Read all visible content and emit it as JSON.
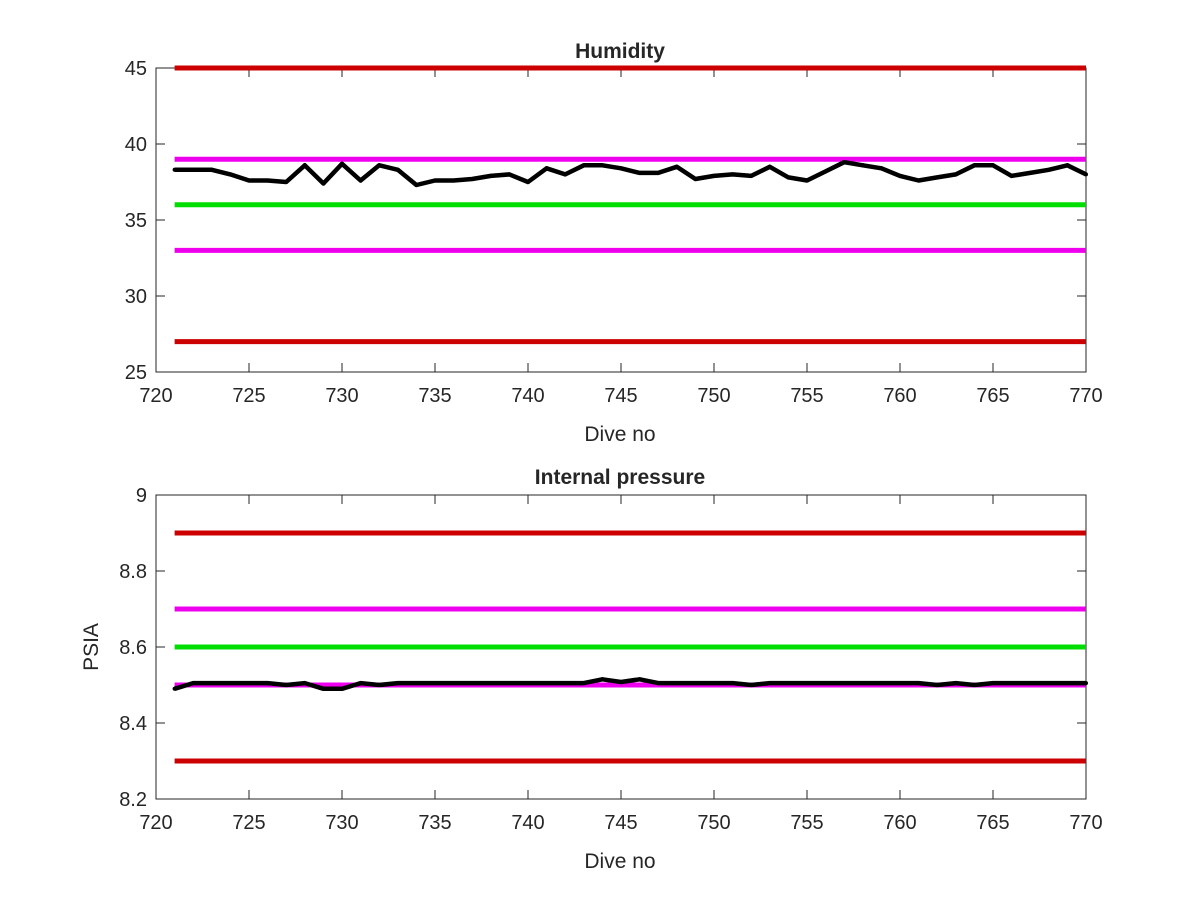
{
  "chart_data": [
    {
      "type": "line",
      "title": "Humidity",
      "xlabel": "Dive no",
      "ylabel": "",
      "xlim": [
        720,
        770
      ],
      "ylim": [
        25,
        45
      ],
      "xticks": [
        720,
        725,
        730,
        735,
        740,
        745,
        750,
        755,
        760,
        765,
        770
      ],
      "yticks": [
        25,
        30,
        35,
        40,
        45
      ],
      "grid": false,
      "reference_lines": [
        {
          "y": 45,
          "color": "#cc0000"
        },
        {
          "y": 39,
          "color": "#ee00ee"
        },
        {
          "y": 36,
          "color": "#00dd00"
        },
        {
          "y": 33,
          "color": "#ee00ee"
        },
        {
          "y": 27,
          "color": "#cc0000"
        }
      ],
      "series": [
        {
          "color": "#000000",
          "x": [
            721,
            722,
            723,
            724,
            725,
            726,
            727,
            728,
            729,
            730,
            731,
            732,
            733,
            734,
            735,
            736,
            737,
            738,
            739,
            740,
            741,
            742,
            743,
            744,
            745,
            746,
            747,
            748,
            749,
            750,
            751,
            752,
            753,
            754,
            755,
            756,
            757,
            758,
            759,
            760,
            761,
            762,
            763,
            764,
            765,
            766,
            767,
            768,
            769,
            770
          ],
          "y": [
            38.3,
            38.3,
            38.3,
            38.0,
            37.6,
            37.6,
            37.5,
            38.6,
            37.4,
            38.7,
            37.6,
            38.6,
            38.3,
            37.3,
            37.6,
            37.6,
            37.7,
            37.9,
            38.0,
            37.5,
            38.4,
            38.0,
            38.6,
            38.6,
            38.4,
            38.1,
            38.1,
            38.5,
            37.7,
            37.9,
            38.0,
            37.9,
            38.5,
            37.8,
            37.6,
            38.2,
            38.8,
            38.6,
            38.4,
            37.9,
            37.6,
            37.8,
            38.0,
            38.6,
            38.6,
            37.9,
            38.1,
            38.3,
            38.6,
            38.0
          ]
        }
      ]
    },
    {
      "type": "line",
      "title": "Internal pressure",
      "xlabel": "Dive no",
      "ylabel": "PSIA",
      "xlim": [
        720,
        770
      ],
      "ylim": [
        8.2,
        9
      ],
      "xticks": [
        720,
        725,
        730,
        735,
        740,
        745,
        750,
        755,
        760,
        765,
        770
      ],
      "yticks": [
        8.2,
        8.4,
        8.6,
        8.8,
        9
      ],
      "grid": false,
      "reference_lines": [
        {
          "y": 8.9,
          "color": "#cc0000"
        },
        {
          "y": 8.7,
          "color": "#ee00ee"
        },
        {
          "y": 8.6,
          "color": "#00dd00"
        },
        {
          "y": 8.5,
          "color": "#ee00ee"
        },
        {
          "y": 8.3,
          "color": "#cc0000"
        }
      ],
      "series": [
        {
          "color": "#000000",
          "x": [
            721,
            722,
            723,
            724,
            725,
            726,
            727,
            728,
            729,
            730,
            731,
            732,
            733,
            734,
            735,
            736,
            737,
            738,
            739,
            740,
            741,
            742,
            743,
            744,
            745,
            746,
            747,
            748,
            749,
            750,
            751,
            752,
            753,
            754,
            755,
            756,
            757,
            758,
            759,
            760,
            761,
            762,
            763,
            764,
            765,
            766,
            767,
            768,
            769,
            770
          ],
          "y": [
            8.49,
            8.505,
            8.505,
            8.505,
            8.505,
            8.505,
            8.5,
            8.505,
            8.49,
            8.49,
            8.505,
            8.5,
            8.505,
            8.505,
            8.505,
            8.505,
            8.505,
            8.505,
            8.505,
            8.505,
            8.505,
            8.505,
            8.505,
            8.515,
            8.508,
            8.515,
            8.505,
            8.505,
            8.505,
            8.505,
            8.505,
            8.5,
            8.505,
            8.505,
            8.505,
            8.505,
            8.505,
            8.505,
            8.505,
            8.505,
            8.505,
            8.5,
            8.505,
            8.5,
            8.505,
            8.505,
            8.505,
            8.505,
            8.505,
            8.505
          ]
        }
      ]
    }
  ]
}
